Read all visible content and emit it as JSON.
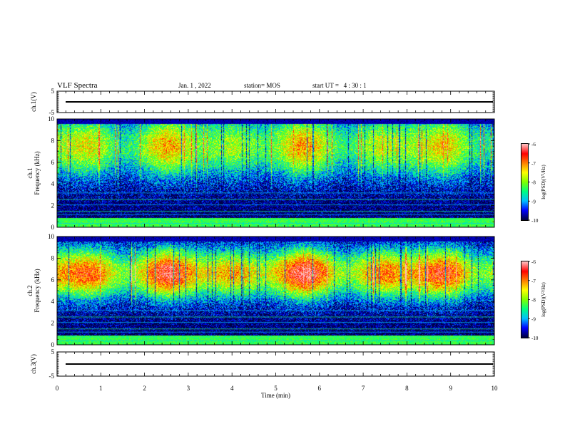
{
  "header": {
    "title": "VLF Spectra",
    "date": "Jan. 1 , 2022",
    "station": "station= MOS",
    "start": "start UT =   4 : 30 : 1"
  },
  "chart_data": {
    "type": "heatmap",
    "x_axis": {
      "label": "Time (min)",
      "range": [
        0,
        10
      ],
      "ticks": [
        "0",
        "1",
        "2",
        "3",
        "4",
        "5",
        "6",
        "7",
        "8",
        "9",
        "10"
      ]
    },
    "panels": [
      {
        "id": "ch1-voltage",
        "ylabel": "ch.1(V)",
        "ylim": [
          -5,
          5
        ],
        "yticks": [
          "5",
          "-5"
        ],
        "trace_value": 0
      },
      {
        "id": "ch1-spectrogram",
        "ylabel": "ch.1\nFrequency (kHz)",
        "ylim": [
          0,
          10
        ],
        "yticks": [
          "0",
          "2",
          "4",
          "6",
          "8",
          "10"
        ],
        "band_center_khz": 7.5,
        "band_width_khz": 3,
        "colorbar": {
          "label": "log(PSD)(V²/Hz)",
          "range": [
            -10,
            -6
          ],
          "ticks": [
            "-6",
            "-7",
            "-8",
            "-9",
            "-10"
          ]
        }
      },
      {
        "id": "ch2-spectrogram",
        "ylabel": "ch.2\nFrequency (kHz)",
        "ylim": [
          0,
          10
        ],
        "yticks": [
          "0",
          "2",
          "4",
          "6",
          "8",
          "10"
        ],
        "band_center_khz": 6.6,
        "band_width_khz": 2.4,
        "colorbar": {
          "label": "log(PSD)(V²/Hz)",
          "range": [
            -10,
            -6
          ],
          "ticks": [
            "-6",
            "-7",
            "-8",
            "-9",
            "-10"
          ]
        }
      },
      {
        "id": "ch3-voltage",
        "ylabel": "ch.3(V)",
        "ylim": [
          -5,
          5
        ],
        "yticks": [
          "5",
          "-5"
        ],
        "trace_value": 0
      }
    ],
    "colormap": [
      "#000040",
      "#0000ff",
      "#00c0ff",
      "#00ff80",
      "#80ff00",
      "#ffff00",
      "#ff8000",
      "#ff0000",
      "#ffc0c0"
    ]
  }
}
